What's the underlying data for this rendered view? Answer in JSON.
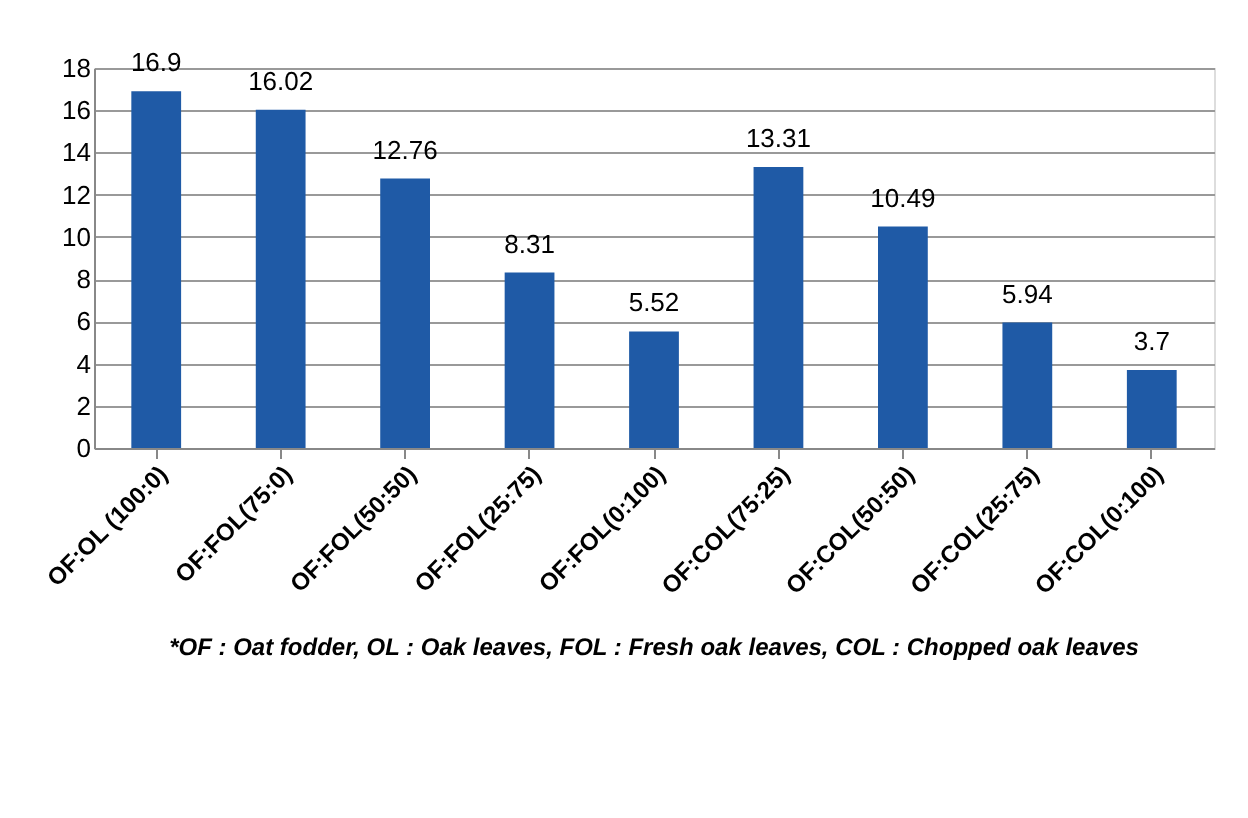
{
  "chart_data": {
    "type": "bar",
    "categories": [
      "OF:OL (100:0)",
      "OF:FOL(75:0)",
      "OF:FOL(50:50)",
      "OF:FOL(25:75)",
      "OF:FOL(0:100)",
      "OF:COL(75:25)",
      "OF:COL(50:50)",
      "OF:COL(25:75)",
      "OF:COL(0:100)"
    ],
    "values": [
      16.9,
      16.02,
      12.76,
      8.31,
      5.52,
      13.31,
      10.49,
      5.94,
      3.7
    ],
    "color": "#1f5aa6",
    "data_labels": true,
    "ylim": [
      0,
      18
    ],
    "yticks": [
      0,
      2,
      4,
      6,
      8,
      10,
      12,
      14,
      16,
      18
    ],
    "grid": "y",
    "annotations": [
      "*OF : Oat fodder, OL : Oak leaves, FOL : Fresh oak leaves, COL : Chopped oak leaves"
    ]
  }
}
